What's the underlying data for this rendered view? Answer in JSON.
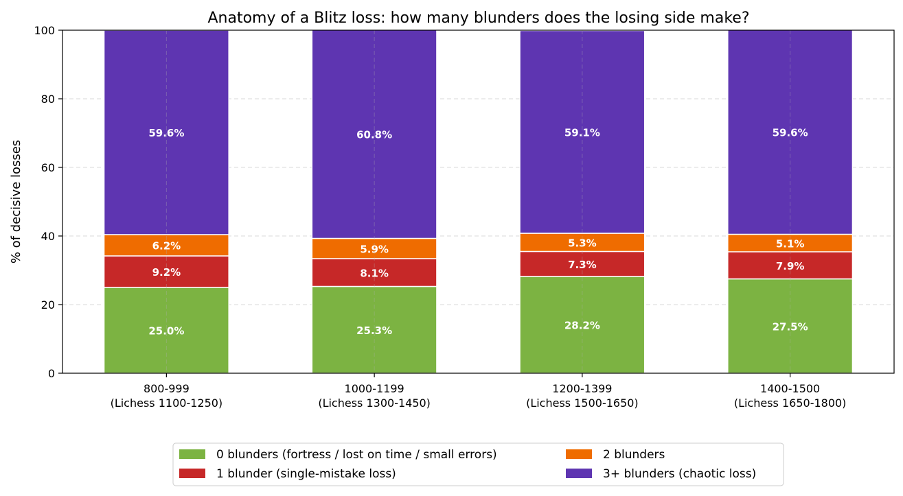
{
  "chart_data": {
    "type": "bar",
    "stacked": true,
    "title": "Anatomy of a Blitz loss: how many blunders does the losing side make?",
    "ylabel": "% of decisive losses",
    "xlabel": "",
    "ylim": [
      0,
      100
    ],
    "yticks": [
      "0",
      "20",
      "40",
      "60",
      "80",
      "100"
    ],
    "grid": true,
    "legend_position": "bottom-center",
    "categories": [
      [
        "800-999",
        "(Lichess 1100-1250)"
      ],
      [
        "1000-1199",
        "(Lichess 1300-1450)"
      ],
      [
        "1200-1399",
        "(Lichess 1500-1650)"
      ],
      [
        "1400-1500",
        "(Lichess 1650-1800)"
      ]
    ],
    "series": [
      {
        "name": "0 blunders (fortress / lost on time / small errors)",
        "color": "#7cb342",
        "values": [
          25.0,
          25.3,
          28.2,
          27.5
        ],
        "labels": [
          "25.0%",
          "25.3%",
          "28.2%",
          "27.5%"
        ]
      },
      {
        "name": "1 blunder (single-mistake loss)",
        "color": "#c62828",
        "values": [
          9.2,
          8.1,
          7.3,
          7.9
        ],
        "labels": [
          "9.2%",
          "8.1%",
          "7.3%",
          "7.9%"
        ]
      },
      {
        "name": "2 blunders",
        "color": "#ef6c00",
        "values": [
          6.2,
          5.9,
          5.3,
          5.1
        ],
        "labels": [
          "6.2%",
          "5.9%",
          "5.3%",
          "5.1%"
        ]
      },
      {
        "name": "3+ blunders (chaotic loss)",
        "color": "#5e35b1",
        "values": [
          59.6,
          60.8,
          59.1,
          59.6
        ],
        "labels": [
          "59.6%",
          "60.8%",
          "59.1%",
          "59.6%"
        ]
      }
    ]
  }
}
